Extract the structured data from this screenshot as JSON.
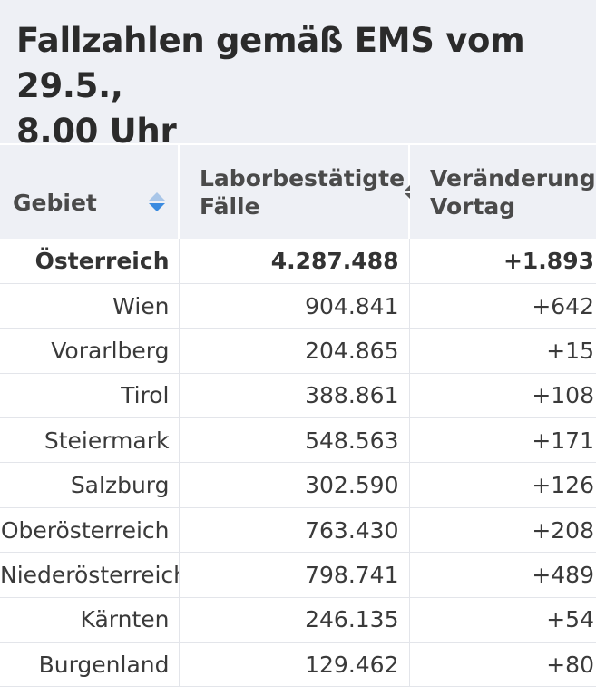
{
  "header": {
    "title_line1": "Fallzahlen gemäß EMS vom 29.5.,",
    "title_line2": "8.00 Uhr"
  },
  "table": {
    "columns": [
      {
        "label": "Gebiet",
        "sort_state": "active"
      },
      {
        "label_line1": "Laborbestätigte",
        "label_line2": "Fälle",
        "sort_state": "none"
      },
      {
        "label_line1": "Veränderung",
        "label_line2": "Vortag",
        "sort_state": "none"
      }
    ],
    "rows": [
      {
        "gebiet": "Österreich",
        "faelle": "4.287.488",
        "veraenderung": "+1.893"
      },
      {
        "gebiet": "Wien",
        "faelle": "904.841",
        "veraenderung": "+642"
      },
      {
        "gebiet": "Vorarlberg",
        "faelle": "204.865",
        "veraenderung": "+15"
      },
      {
        "gebiet": "Tirol",
        "faelle": "388.861",
        "veraenderung": "+108"
      },
      {
        "gebiet": "Steiermark",
        "faelle": "548.563",
        "veraenderung": "+171"
      },
      {
        "gebiet": "Salzburg",
        "faelle": "302.590",
        "veraenderung": "+126"
      },
      {
        "gebiet": "Oberösterreich",
        "faelle": "763.430",
        "veraenderung": "+208"
      },
      {
        "gebiet": "Niederösterreich",
        "faelle": "798.741",
        "veraenderung": "+489"
      },
      {
        "gebiet": "Kärnten",
        "faelle": "246.135",
        "veraenderung": "+54"
      },
      {
        "gebiet": "Burgenland",
        "faelle": "129.462",
        "veraenderung": "+80"
      }
    ]
  },
  "icons": {
    "sort_active": "sort-ascending-icon",
    "sort_inactive": "sort-icon"
  },
  "colors": {
    "header_background": "#eef0f5",
    "sort_active_blue": "#3b8be0",
    "text": "#333333"
  }
}
